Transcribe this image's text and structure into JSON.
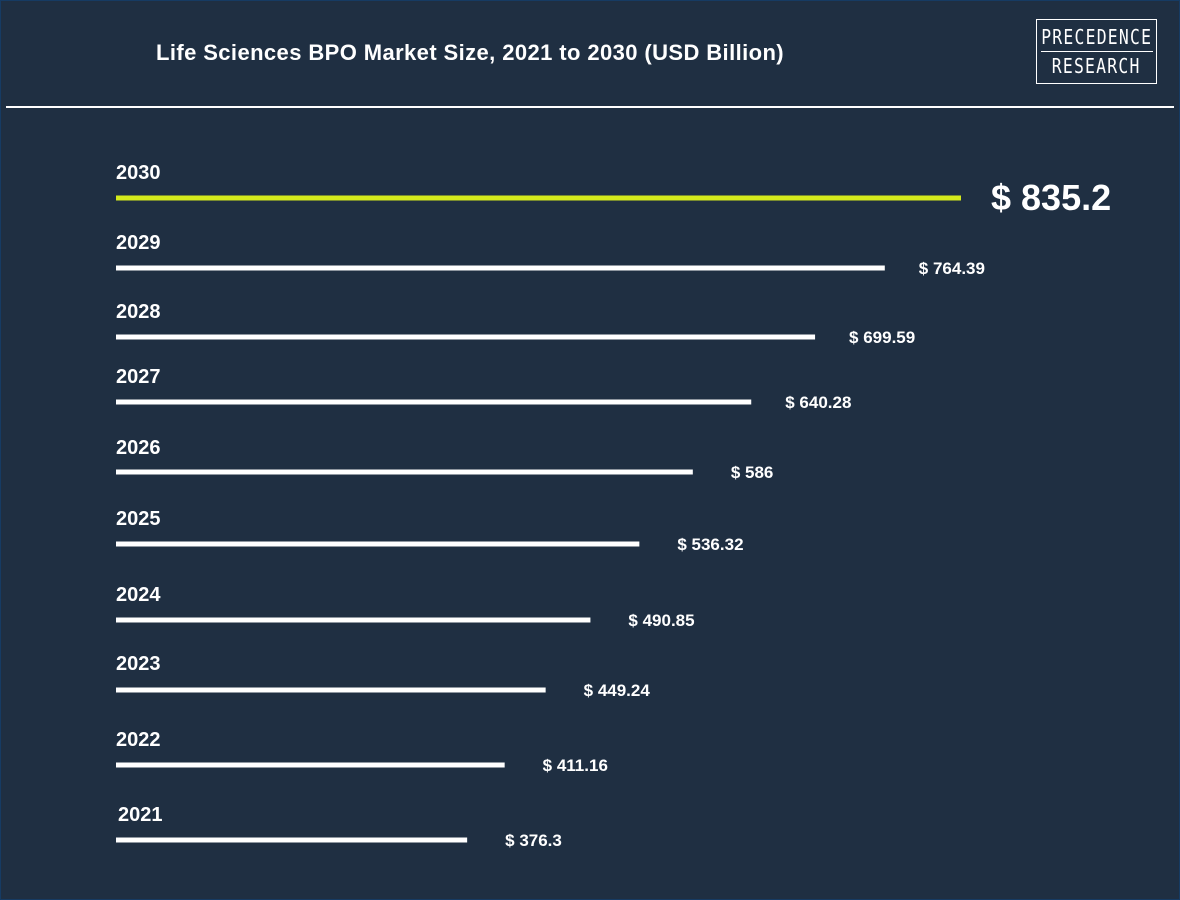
{
  "title": "Life Sciences BPO Market Size, 2021 to 2030 (USD Billion)",
  "logo": {
    "line1": "PRECEDENCE",
    "line2": "RESEARCH"
  },
  "colors": {
    "background": "#1f2f42",
    "bar": "#ffffff",
    "highlight_bar": "#d4ea1c",
    "text": "#ffffff"
  },
  "chart_data": {
    "type": "bar",
    "orientation": "horizontal",
    "title": "Life Sciences BPO Market Size, 2021 to 2030 (USD Billion)",
    "categories": [
      "2030",
      "2029",
      "2028",
      "2027",
      "2026",
      "2025",
      "2024",
      "2023",
      "2022",
      "2021"
    ],
    "values": [
      835.2,
      764.39,
      699.59,
      640.28,
      586,
      536.32,
      490.85,
      449.24,
      411.16,
      376.3
    ],
    "value_labels": [
      "$ 835.2",
      "$ 764.39",
      "$ 699.59",
      "$ 640.28",
      "$ 586",
      "$ 536.32",
      "$ 490.85",
      "$ 449.24",
      "$ 411.16",
      "$ 376.3"
    ],
    "highlight_category": "2030",
    "grid": false,
    "legend": "none"
  }
}
